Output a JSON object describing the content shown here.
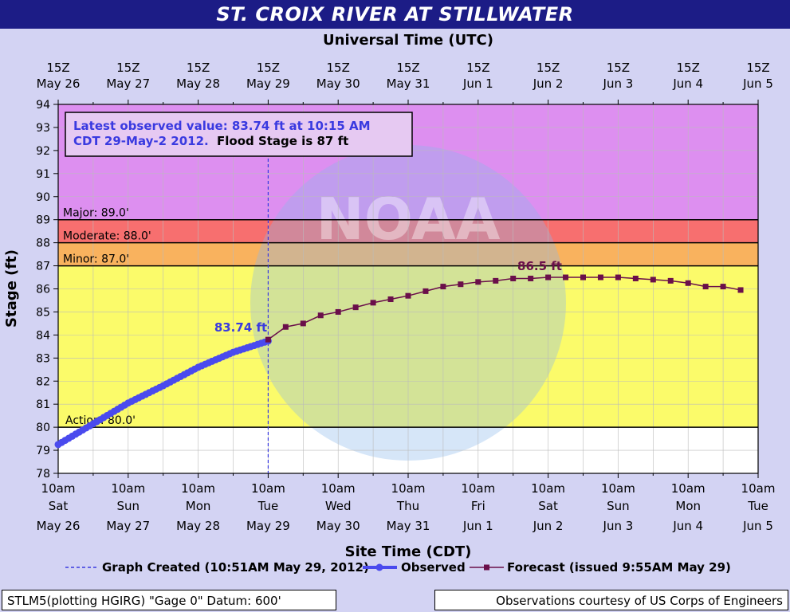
{
  "title": "ST. CROIX RIVER AT STILLWATER",
  "chart_data": {
    "type": "line",
    "top_axis_title": "Universal Time (UTC)",
    "xlabel": "Site Time (CDT)",
    "ylabel": "Stage (ft)",
    "ylim": [
      78,
      94
    ],
    "yticks": [
      78,
      79,
      80,
      81,
      82,
      83,
      84,
      85,
      86,
      87,
      88,
      89,
      90,
      91,
      92,
      93,
      94
    ],
    "x_range_days": [
      "May 26 10am",
      "Jun 5 10am"
    ],
    "top_ticks": [
      {
        "l1": "15Z",
        "l2": "May 26"
      },
      {
        "l1": "15Z",
        "l2": "May 27"
      },
      {
        "l1": "15Z",
        "l2": "May 28"
      },
      {
        "l1": "15Z",
        "l2": "May 29"
      },
      {
        "l1": "15Z",
        "l2": "May 30"
      },
      {
        "l1": "15Z",
        "l2": "May 31"
      },
      {
        "l1": "15Z",
        "l2": "Jun 1"
      },
      {
        "l1": "15Z",
        "l2": "Jun 2"
      },
      {
        "l1": "15Z",
        "l2": "Jun 3"
      },
      {
        "l1": "15Z",
        "l2": "Jun 4"
      },
      {
        "l1": "15Z",
        "l2": "Jun 5"
      }
    ],
    "bottom_ticks": [
      {
        "l1": "10am",
        "l2": "Sat",
        "l3": "May 26"
      },
      {
        "l1": "10am",
        "l2": "Sun",
        "l3": "May 27"
      },
      {
        "l1": "10am",
        "l2": "Mon",
        "l3": "May 28"
      },
      {
        "l1": "10am",
        "l2": "Tue",
        "l3": "May 29"
      },
      {
        "l1": "10am",
        "l2": "Wed",
        "l3": "May 30"
      },
      {
        "l1": "10am",
        "l2": "Thu",
        "l3": "May 31"
      },
      {
        "l1": "10am",
        "l2": "Fri",
        "l3": "Jun 1"
      },
      {
        "l1": "10am",
        "l2": "Sat",
        "l3": "Jun 2"
      },
      {
        "l1": "10am",
        "l2": "Sun",
        "l3": "Jun 3"
      },
      {
        "l1": "10am",
        "l2": "Mon",
        "l3": "Jun 4"
      },
      {
        "l1": "10am",
        "l2": "Tue",
        "l3": "Jun 5"
      }
    ],
    "bands": [
      {
        "label": "Major: 89.0'",
        "from": 89,
        "to": 94,
        "color": "#dd8ff0"
      },
      {
        "label": "Moderate: 88.0'",
        "from": 88,
        "to": 89,
        "color": "#f76f6f"
      },
      {
        "label": "Minor: 87.0'",
        "from": 87,
        "to": 88,
        "color": "#f9b25e"
      },
      {
        "label": "Action: 80.0'",
        "from": 80,
        "to": 87,
        "color": "#fbfb6a"
      }
    ],
    "observed": {
      "name": "Observed",
      "color": "#4a4aee",
      "x": [
        0,
        0.5,
        1,
        1.5,
        2,
        2.5,
        3
      ],
      "y": [
        79.25,
        80.15,
        81.05,
        81.8,
        82.6,
        83.25,
        83.74
      ]
    },
    "forecast": {
      "name": "Forecast (issued 9:55AM May 29)",
      "color": "#6a0f4a",
      "x": [
        3,
        3.25,
        3.5,
        3.75,
        4,
        4.25,
        4.5,
        4.75,
        5,
        5.25,
        5.5,
        5.75,
        6,
        6.25,
        6.5,
        6.75,
        7,
        7.25,
        7.5,
        7.75,
        8,
        8.25,
        8.5,
        8.75,
        9,
        9.25,
        9.5,
        9.75
      ],
      "y": [
        83.8,
        84.35,
        84.5,
        84.85,
        85.0,
        85.2,
        85.4,
        85.55,
        85.7,
        85.9,
        86.1,
        86.2,
        86.3,
        86.35,
        86.45,
        86.45,
        86.5,
        86.5,
        86.5,
        86.5,
        86.5,
        86.45,
        86.4,
        86.35,
        86.25,
        86.1,
        86.1,
        85.95
      ]
    },
    "created_line_x": 3,
    "observed_label": "83.74 ft",
    "forecast_label": "86.5 ft",
    "info_box": {
      "observed_text": "Latest observed value: 83.74 ft at 10:15 AM",
      "observed_text2": "CDT 29-May-2 2012.",
      "flood_text": "Flood Stage is 87 ft"
    },
    "legend": {
      "created": "Graph Created (10:51AM May 29, 2012)",
      "observed": "Observed",
      "forecast": "Forecast (issued 9:55AM May 29)"
    },
    "watermark": "NOAA"
  },
  "footer": {
    "left": "STLM5(plotting HGIRG) \"Gage 0\" Datum: 600'",
    "right": "Observations courtesy of US Corps of Engineers"
  }
}
